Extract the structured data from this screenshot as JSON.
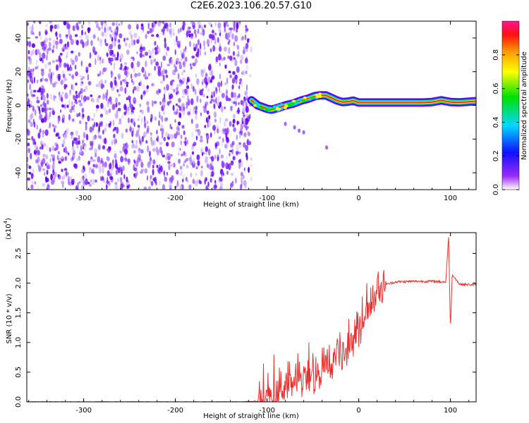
{
  "title": "C2E6.2023.106.20.57.G10",
  "chart_data": [
    {
      "type": "heatmap",
      "title": "",
      "xlabel": "Height of straight line (km)",
      "ylabel": "Frequency (Hz)",
      "xlim": [
        -362,
        128
      ],
      "ylim": [
        -50,
        50
      ],
      "xticks": [
        -300,
        -200,
        -100,
        0,
        100
      ],
      "xtick_labels": [
        "-300",
        "-200",
        "-100",
        "0",
        "100"
      ],
      "yticks": [
        -40,
        -20,
        0,
        20,
        40
      ],
      "ytick_labels": [
        "-40",
        "-20",
        "0",
        "20",
        "40"
      ],
      "noise_region_x": [
        -362,
        -117
      ],
      "signal_track": {
        "x": [
          -117,
          -110,
          -100,
          -95,
          -88,
          -80,
          -72,
          -62,
          -55,
          -48,
          -42,
          -36,
          -30,
          -24,
          -18,
          -12,
          -6,
          0,
          10,
          30,
          50,
          70,
          80,
          90,
          100,
          110,
          128
        ],
        "y": [
          3,
          0,
          -2,
          -2.5,
          -1.5,
          0,
          1,
          3,
          4,
          5.5,
          6,
          6,
          4.5,
          3,
          2,
          2.2,
          2.8,
          1.7,
          1.7,
          1.7,
          1.7,
          1.7,
          2,
          3,
          2,
          1.8,
          2.5
        ]
      },
      "colorbar": {
        "label": "Normalized spectral amplitude",
        "ticks": [
          0.0,
          0.2,
          0.4,
          0.6,
          0.8
        ],
        "tick_labels": [
          "0.0",
          "0.2",
          "0.4",
          "0.6",
          "0.8"
        ],
        "range": [
          0,
          1
        ],
        "colormap": "rainbow (white, violet, blue, cyan, green, yellow, orange, red, magenta)"
      }
    },
    {
      "type": "line",
      "title": "",
      "xlabel": "Height of straight line (km)",
      "ylabel": "SNR (10 * v/v)",
      "y_multiplier_label": "(x10",
      "y_multiplier_exp": "4",
      "xlim": [
        -362,
        128
      ],
      "ylim": [
        0,
        2.85
      ],
      "xticks": [
        -300,
        -200,
        -100,
        0,
        100
      ],
      "xtick_labels": [
        "-300",
        "-200",
        "-100",
        "0",
        "100"
      ],
      "yticks": [
        0.0,
        0.5,
        1.0,
        1.5,
        2.0,
        2.5
      ],
      "ytick_labels": [
        "0.0",
        "0.5",
        "1.0",
        "1.5",
        "2.0",
        "2.5"
      ],
      "series": [
        {
          "color": "#e8312f",
          "x": [
            -362,
            -300,
            -200,
            -130,
            -110,
            -100,
            -90,
            -80,
            -70,
            -60,
            -50,
            -40,
            -30,
            -20,
            -10,
            0,
            10,
            20,
            30,
            40,
            60,
            80,
            95,
            98,
            100,
            102,
            110,
            128
          ],
          "y": [
            0.0,
            0.0,
            0.0,
            0.0,
            0.01,
            0.03,
            0.12,
            0.22,
            0.3,
            0.35,
            0.42,
            0.5,
            0.62,
            0.78,
            0.95,
            1.15,
            1.5,
            1.8,
            1.98,
            2.02,
            2.03,
            2.03,
            2.02,
            2.8,
            1.2,
            2.15,
            1.98,
            1.97
          ]
        }
      ]
    }
  ]
}
